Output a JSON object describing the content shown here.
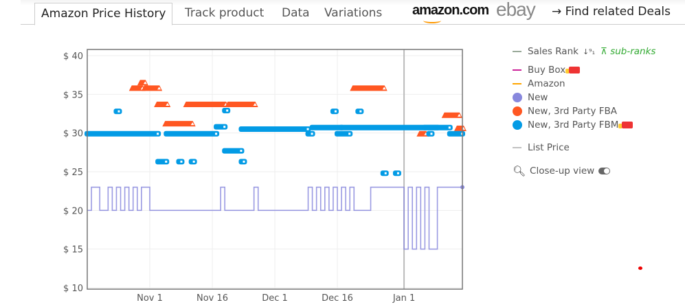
{
  "tabs": [
    {
      "label": "Amazon Price History",
      "active": true
    },
    {
      "label": "Track product"
    },
    {
      "label": "Data"
    },
    {
      "label": "Variations"
    }
  ],
  "links": {
    "amazon": "amazon.com",
    "ebay": "ebay",
    "deals": "→ Find related Deals"
  },
  "legend": {
    "sales_rank": "Sales Rank",
    "sales_rank_icon": "sort-numeric-icon",
    "sub_ranks": "sub-ranks",
    "buy_box": "Buy Box",
    "amazon": "Amazon",
    "new": "New",
    "fba": "New, 3rd Party FBA",
    "fbm": "New, 3rd Party FBM",
    "list_price": "List Price",
    "closeup": "Close-up view"
  },
  "colors": {
    "new": "#8888dd",
    "fba": "#ff5722",
    "fbm": "#039be5",
    "buy_box": "#cc2299",
    "amazon": "#ffa500",
    "sales_rank": "#9aaa9a",
    "list_price": "#c0c0c0",
    "sub_ranks": "#33aa33"
  },
  "chart_data": {
    "type": "line",
    "ylim": [
      10,
      40
    ],
    "yticks": [
      "$ 10",
      "$ 15",
      "$ 20",
      "$ 25",
      "$ 30",
      "$ 35",
      "$ 40"
    ],
    "ytick_values": [
      10,
      15,
      20,
      25,
      30,
      35,
      40
    ],
    "xlim": [
      "Oct 17",
      "Jan 15"
    ],
    "xticks": [
      "Nov 1",
      "Nov 16",
      "Dec 1",
      "Dec 16",
      "Jan 1"
    ],
    "year_marker": "Jan 1",
    "grid": true,
    "series": [
      {
        "name": "New",
        "kind": "step",
        "points": [
          [
            "Oct 17",
            20
          ],
          [
            "Oct 18",
            23
          ],
          [
            "Oct 20",
            20
          ],
          [
            "Oct 22",
            23
          ],
          [
            "Oct 23",
            20
          ],
          [
            "Oct 24",
            23
          ],
          [
            "Oct 25",
            20
          ],
          [
            "Oct 26",
            23
          ],
          [
            "Oct 27",
            20
          ],
          [
            "Oct 28",
            23
          ],
          [
            "Oct 29",
            20
          ],
          [
            "Oct 30",
            23
          ],
          [
            "Nov 1",
            20
          ],
          [
            "Nov 18",
            23
          ],
          [
            "Nov 19",
            20
          ],
          [
            "Nov 26",
            23
          ],
          [
            "Nov 27",
            20
          ],
          [
            "Dec 9",
            23
          ],
          [
            "Dec 10",
            20
          ],
          [
            "Dec 11",
            23
          ],
          [
            "Dec 12",
            20
          ],
          [
            "Dec 13",
            23
          ],
          [
            "Dec 14",
            20
          ],
          [
            "Dec 15",
            23
          ],
          [
            "Dec 16",
            20
          ],
          [
            "Dec 17",
            23
          ],
          [
            "Dec 18",
            20
          ],
          [
            "Dec 19",
            23
          ],
          [
            "Dec 20",
            20
          ],
          [
            "Dec 24",
            23
          ],
          [
            "Jan 1",
            15
          ],
          [
            "Jan 2",
            23
          ],
          [
            "Jan 3",
            15
          ],
          [
            "Jan 4",
            23
          ],
          [
            "Jan 5",
            15
          ],
          [
            "Jan 6",
            23
          ],
          [
            "Jan 7",
            15
          ],
          [
            "Jan 9",
            23
          ],
          [
            "Jan 15",
            23
          ]
        ]
      },
      {
        "name": "New, 3rd Party FBA",
        "kind": "markers",
        "segments": [
          [
            "Oct 28",
            "Oct 30",
            35.8
          ],
          [
            "Oct 30",
            "Oct 30",
            36.5
          ],
          [
            "Oct 31",
            "Nov 3",
            35.8
          ],
          [
            "Nov 3",
            "Nov 5",
            33.7
          ],
          [
            "Nov 5",
            "Nov 11",
            31.2
          ],
          [
            "Nov 10",
            "Nov 19",
            33.7
          ],
          [
            "Nov 20",
            "Nov 26",
            33.7
          ],
          [
            "Dec 20",
            "Dec 27",
            35.8
          ],
          [
            "Jan 5",
            "Jan 6",
            29.9
          ],
          [
            "Jan 11",
            "Jan 14",
            32.3
          ],
          [
            "Jan 14",
            "Jan 15",
            30.6
          ]
        ]
      },
      {
        "name": "New, 3rd Party FBM",
        "kind": "markers",
        "segments": [
          [
            "Oct 17",
            "Nov 3",
            29.9
          ],
          [
            "Oct 24",
            "Oct 24",
            32.8
          ],
          [
            "Nov 3",
            "Nov 5",
            26.3
          ],
          [
            "Nov 8",
            "Nov 8",
            26.3
          ],
          [
            "Nov 11",
            "Nov 11",
            26.3
          ],
          [
            "Nov 5",
            "Nov 17",
            29.9
          ],
          [
            "Nov 17",
            "Nov 19",
            30.8
          ],
          [
            "Nov 19",
            "Nov 19",
            32.9
          ],
          [
            "Nov 19",
            "Nov 23",
            27.7
          ],
          [
            "Nov 23",
            "Nov 23",
            26.3
          ],
          [
            "Nov 23",
            "Dec 9",
            30.5
          ],
          [
            "Dec 9",
            "Dec 10",
            29.9
          ],
          [
            "Dec 10",
            "Dec 17",
            30.7
          ],
          [
            "Dec 15",
            "Dec 15",
            32.8
          ],
          [
            "Dec 16",
            "Dec 19",
            29.9
          ],
          [
            "Dec 21",
            "Dec 21",
            32.8
          ],
          [
            "Dec 17",
            "Jan 9",
            30.7
          ],
          [
            "Dec 27",
            "Dec 27",
            24.8
          ],
          [
            "Dec 30",
            "Dec 30",
            24.8
          ],
          [
            "Jan 6",
            "Jan 12",
            30.7
          ],
          [
            "Jan 7",
            "Jan 7",
            29.9
          ],
          [
            "Jan 12",
            "Jan 15",
            29.9
          ]
        ]
      }
    ]
  }
}
